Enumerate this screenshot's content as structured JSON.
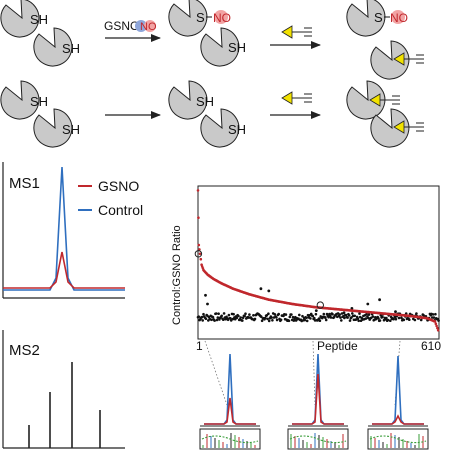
{
  "labels": {
    "sh": "SH",
    "gsno": "GSNO",
    "s": "S",
    "no": "NO",
    "ms1": "MS1",
    "ms2": "MS2",
    "legend_gsno": "GSNO",
    "legend_control": "Control"
  },
  "colors": {
    "gsno": "#c0282d",
    "control": "#2f6fbf",
    "pacman": "#c9c9c9",
    "probe": "#f2e200",
    "g_ball": "#8ea6da",
    "no_ball": "#f2a3a3",
    "dots": "#111111"
  },
  "chart_data": {
    "type": "scatter",
    "title": "",
    "xlabel": "Peptide",
    "ylabel": "Control:GSNO Ratio",
    "x_ticks": [
      "1",
      "610"
    ],
    "xlim": [
      1,
      610
    ],
    "series": [
      {
        "color": "#c0282d",
        "style": "sorted-curve",
        "x": [
          1,
          3,
          6,
          10,
          15,
          25,
          40,
          60,
          90,
          130,
          180,
          240,
          300,
          360,
          420,
          480,
          540,
          580,
          600,
          610
        ],
        "y": [
          6.8,
          4.3,
          3.9,
          3.4,
          3.15,
          2.95,
          2.75,
          2.55,
          2.3,
          2.05,
          1.8,
          1.6,
          1.45,
          1.35,
          1.25,
          1.15,
          1.05,
          0.95,
          0.8,
          0.3
        ]
      },
      {
        "color": "#111111",
        "style": "dots",
        "baseline": 1.0,
        "outliers": [
          {
            "x": 20,
            "y": 2.0
          },
          {
            "x": 25,
            "y": 1.6
          },
          {
            "x": 160,
            "y": 2.3
          },
          {
            "x": 180,
            "y": 2.2
          },
          {
            "x": 300,
            "y": 1.3
          },
          {
            "x": 370,
            "y": 1.2
          },
          {
            "x": 390,
            "y": 1.4
          },
          {
            "x": 430,
            "y": 1.6
          },
          {
            "x": 460,
            "y": 1.8
          },
          {
            "x": 500,
            "y": 1.25
          }
        ]
      }
    ],
    "highlighted": [
      {
        "x": 2,
        "y": 3.9
      },
      {
        "x": 310,
        "y": 1.55
      }
    ]
  }
}
